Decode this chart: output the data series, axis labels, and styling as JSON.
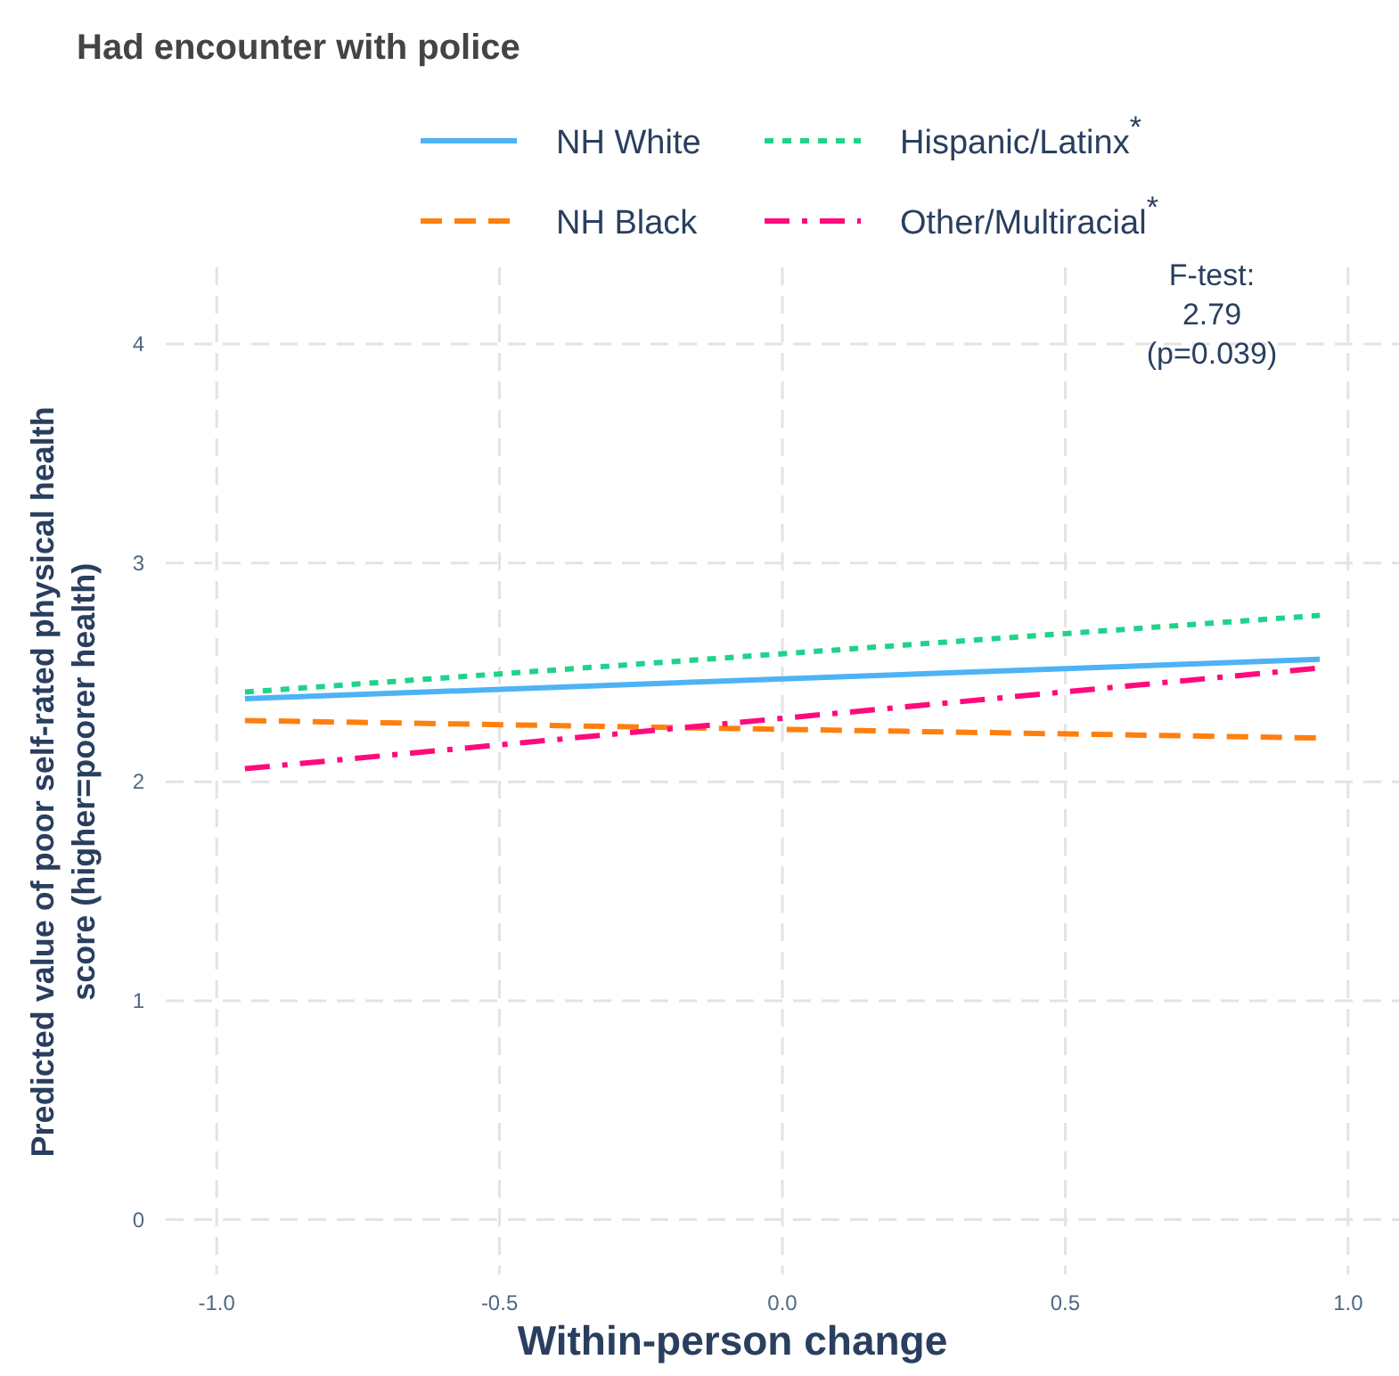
{
  "chart_data": {
    "type": "line",
    "title": "Had encounter with police",
    "xlabel": "Within-person change",
    "ylabel": "Predicted value of poor self-rated physical health\nscore (higher=poorer health)",
    "x": [
      -0.95,
      0.95
    ],
    "series": [
      {
        "name": "NH White",
        "color": "#4db3f5",
        "line_style": "solid",
        "values": [
          2.38,
          2.56
        ]
      },
      {
        "name": "Hispanic/Latinx$^{*}$",
        "color": "#1fd38a",
        "line_style": "dotted",
        "values": [
          2.41,
          2.76
        ]
      },
      {
        "name": "NH Black",
        "color": "#ff7f0e",
        "line_style": "dashed",
        "values": [
          2.28,
          2.2
        ]
      },
      {
        "name": "Other/Multiracial$^{*}$",
        "color": "#ff0a7c",
        "line_style": "dashdot",
        "values": [
          2.06,
          2.52
        ]
      }
    ],
    "xlim": [
      -1.09,
      1.09
    ],
    "ylim": [
      -0.25,
      4.35
    ],
    "xticks": [
      {
        "value": -1,
        "label": "-1.0"
      },
      -0.5,
      {
        "value": 0,
        "label": "0.0"
      },
      0.5,
      {
        "value": 1,
        "label": "1.0"
      }
    ],
    "yticks": [
      0,
      1,
      2,
      3,
      4
    ],
    "grid": true,
    "legend": "top",
    "marker": "none",
    "annotations": [
      "F-test:\n2.79\n(p=0.039)"
    ]
  }
}
